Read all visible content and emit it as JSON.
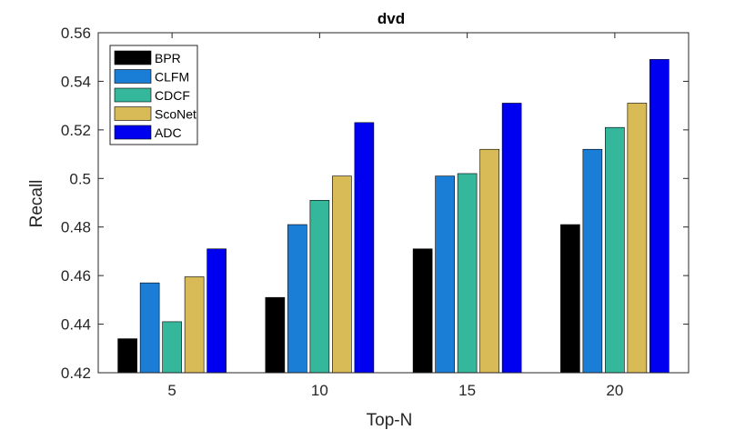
{
  "chart_data": {
    "type": "bar",
    "title": "dvd",
    "xlabel": "Top-N",
    "ylabel": "Recall",
    "categories": [
      "5",
      "10",
      "15",
      "20"
    ],
    "ylim": [
      0.42,
      0.56
    ],
    "yticks": [
      "0.42",
      "0.44",
      "0.46",
      "0.48",
      "0.5",
      "0.52",
      "0.54",
      "0.56"
    ],
    "legend_position": "top-left",
    "grid": false,
    "series": [
      {
        "name": "BPR",
        "color": "#000000",
        "values": [
          0.434,
          0.451,
          0.471,
          0.481
        ]
      },
      {
        "name": "CLFM",
        "color": "#1a7dd6",
        "values": [
          0.457,
          0.481,
          0.501,
          0.512
        ]
      },
      {
        "name": "CDCF",
        "color": "#35b79c",
        "values": [
          0.441,
          0.491,
          0.502,
          0.521
        ]
      },
      {
        "name": "ScoNet",
        "color": "#d8bb57",
        "values": [
          0.4595,
          0.501,
          0.512,
          0.531
        ]
      },
      {
        "name": "ADC",
        "color": "#0000f0",
        "values": [
          0.471,
          0.523,
          0.531,
          0.549
        ]
      }
    ]
  }
}
